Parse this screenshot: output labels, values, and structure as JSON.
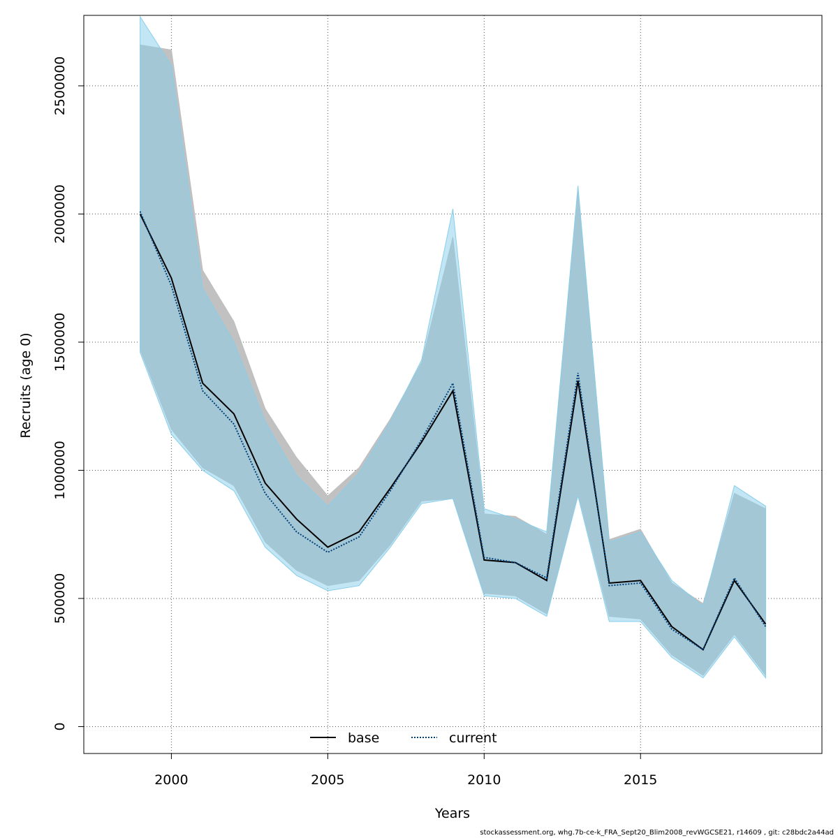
{
  "chart_data": {
    "type": "line",
    "xlabel": "Years",
    "ylabel": "Recruits (age 0)",
    "xlim": [
      1997.2,
      2020.8
    ],
    "ylim": [
      -105000,
      2775000
    ],
    "x_ticks": [
      2000,
      2005,
      2010,
      2015
    ],
    "y_ticks": [
      0,
      500000,
      1000000,
      1500000,
      2000000,
      2500000
    ],
    "grid": true,
    "legend_position": "bottom-center",
    "x": [
      1999,
      2000,
      2001,
      2002,
      2003,
      2004,
      2005,
      2006,
      2007,
      2008,
      2009,
      2010,
      2011,
      2012,
      2013,
      2014,
      2015,
      2016,
      2017,
      2018,
      2019
    ],
    "series": [
      {
        "name": "base",
        "color": "#000000",
        "line_style": "solid",
        "band_color": "#bebebe",
        "values": [
          2000000,
          1750000,
          1340000,
          1220000,
          950000,
          810000,
          700000,
          760000,
          930000,
          1110000,
          1310000,
          650000,
          640000,
          570000,
          1350000,
          560000,
          570000,
          390000,
          300000,
          570000,
          400000
        ],
        "lower": [
          1470000,
          1160000,
          1010000,
          940000,
          720000,
          610000,
          550000,
          570000,
          710000,
          880000,
          890000,
          520000,
          510000,
          440000,
          910000,
          430000,
          420000,
          280000,
          200000,
          360000,
          200000
        ],
        "upper": [
          2660000,
          2640000,
          1780000,
          1580000,
          1240000,
          1050000,
          900000,
          1010000,
          1200000,
          1420000,
          1910000,
          830000,
          820000,
          750000,
          2090000,
          730000,
          770000,
          560000,
          480000,
          910000,
          850000
        ]
      },
      {
        "name": "current",
        "color": "#00407a",
        "line_style": "dotted",
        "band_color": "#87ceeb",
        "values": [
          2010000,
          1720000,
          1310000,
          1180000,
          910000,
          760000,
          680000,
          740000,
          920000,
          1120000,
          1340000,
          660000,
          640000,
          580000,
          1380000,
          550000,
          560000,
          380000,
          300000,
          580000,
          390000
        ],
        "lower": [
          1460000,
          1140000,
          1000000,
          920000,
          700000,
          590000,
          530000,
          550000,
          700000,
          870000,
          890000,
          510000,
          500000,
          430000,
          900000,
          410000,
          410000,
          270000,
          190000,
          350000,
          190000
        ],
        "upper": [
          2770000,
          2580000,
          1710000,
          1500000,
          1190000,
          980000,
          860000,
          990000,
          1190000,
          1430000,
          2020000,
          850000,
          810000,
          760000,
          2110000,
          720000,
          760000,
          570000,
          470000,
          940000,
          860000
        ]
      }
    ]
  },
  "footer": {
    "text": "stockassessment.org, whg.7b-ce-k_FRA_Sept20_Blim2008_revWGCSE21, r14609 , git: c28bdc2a44ad"
  }
}
